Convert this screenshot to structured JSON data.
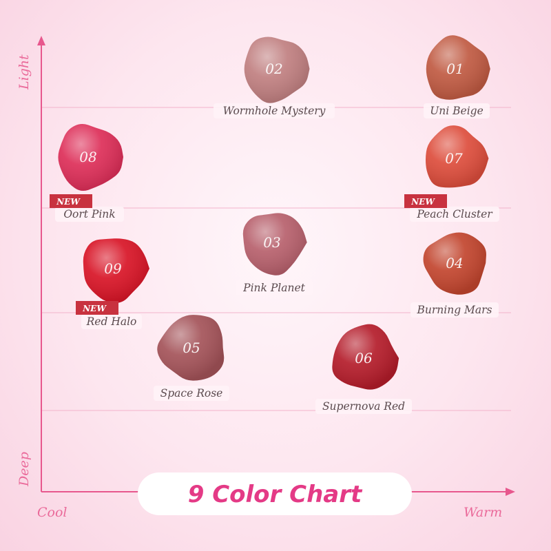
{
  "title": "9 Color Chart",
  "axes": {
    "vertical_top": "Light",
    "vertical_bottom": "Deep",
    "horizontal_left": "Cool",
    "horizontal_right": "Warm"
  },
  "new_badge": "NEW",
  "shades": [
    {
      "number": "01",
      "name": "Uni Beige",
      "color": "#c05a42",
      "is_new": false
    },
    {
      "number": "02",
      "name": "Wormhole Mystery",
      "color": "#c07f80",
      "is_new": false
    },
    {
      "number": "03",
      "name": "Pink Planet",
      "color": "#b7606c",
      "is_new": false
    },
    {
      "number": "04",
      "name": "Burning Mars",
      "color": "#c2452e",
      "is_new": false
    },
    {
      "number": "05",
      "name": "Space Rose",
      "color": "#a45359",
      "is_new": false
    },
    {
      "number": "06",
      "name": "Supernova Red",
      "color": "#b41c2a",
      "is_new": false
    },
    {
      "number": "07",
      "name": "Peach Cluster",
      "color": "#dd4d3c",
      "is_new": true
    },
    {
      "number": "08",
      "name": "Oort Pink",
      "color": "#dd2e58",
      "is_new": true
    },
    {
      "number": "09",
      "name": "Red Halo",
      "color": "#d81426",
      "is_new": true
    }
  ],
  "colors": {
    "axis": "#e7578d",
    "title": "#e43a86",
    "grid": "#f2b3cb"
  }
}
